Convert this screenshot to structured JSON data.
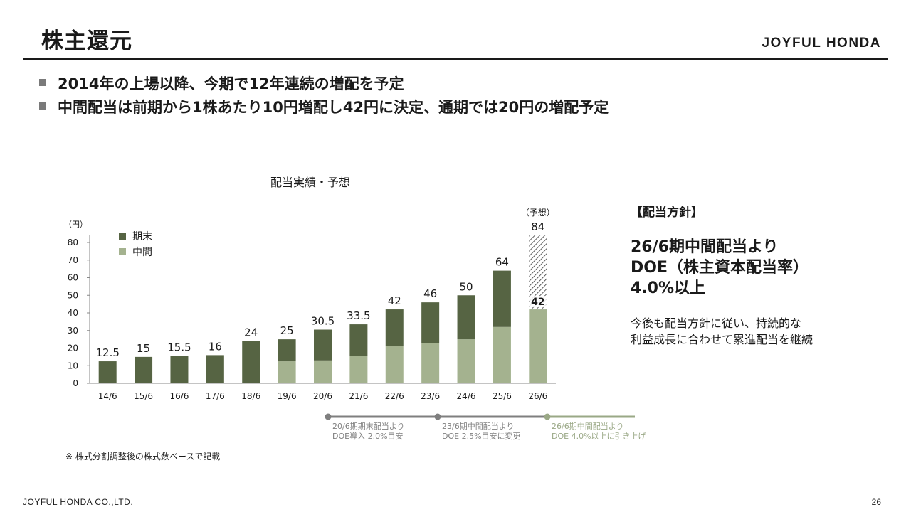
{
  "header": {
    "title": "株主還元",
    "logo": "JOYFUL HONDA"
  },
  "bullets": [
    "2014年の上場以降、今期で12年連続の増配を予定",
    "中間配当は前期から1株あたり10円増配し42円に決定、通期では20円の増配予定"
  ],
  "chart_data": {
    "type": "bar",
    "stacked": true,
    "title": "配当実績・予想",
    "ylabel": "（円）",
    "ylim": [
      0,
      80
    ],
    "yticks": [
      0,
      10,
      20,
      30,
      40,
      50,
      60,
      70,
      80
    ],
    "categories": [
      "14/6",
      "15/6",
      "16/6",
      "17/6",
      "18/6",
      "19/6",
      "20/6",
      "21/6",
      "22/6",
      "23/6",
      "24/6",
      "25/6",
      "26/6"
    ],
    "series": [
      {
        "name": "中間",
        "color": "#a4b28f",
        "values": [
          0,
          0,
          0,
          0,
          0,
          12.5,
          13,
          15.5,
          21,
          23,
          25,
          32,
          42
        ]
      },
      {
        "name": "期末",
        "color": "#566443",
        "values": [
          12.5,
          15,
          15.5,
          16,
          24,
          12.5,
          17.5,
          18,
          21,
          23,
          25,
          32,
          42
        ]
      }
    ],
    "legend": [
      "期末",
      "中間"
    ],
    "totals": [
      "12.5",
      "15",
      "15.5",
      "16",
      "24",
      "25",
      "30.5",
      "33.5",
      "42",
      "46",
      "50",
      "64",
      "84"
    ],
    "forecast_label": "（予想）",
    "forecast_inner_label": "42"
  },
  "timeline": {
    "accent": "#9aa886",
    "muted": "#7f7f7f",
    "items": [
      {
        "line1": "20/6期期末配当より",
        "line2": "DOE導入 2.0%目安"
      },
      {
        "line1": "23/6期中間配当より",
        "line2": "DOE 2.5%目安に変更"
      },
      {
        "line1": "26/6期中間配当より",
        "line2": "DOE 4.0%以上に引き上げ"
      }
    ]
  },
  "policy": {
    "heading": "【配当方針】",
    "main_lines": [
      "26/6期中間配当より",
      "DOE（株主資本配当率）",
      "4.0%以上"
    ],
    "sub_lines": [
      "今後も配当方針に従い、持続的な",
      "利益成長に合わせて累進配当を継続"
    ]
  },
  "footnote": "※ 株式分割調整後の株式数ベースで記載",
  "footer": {
    "company": "JOYFUL HONDA CO.,LTD.",
    "page": "26"
  }
}
